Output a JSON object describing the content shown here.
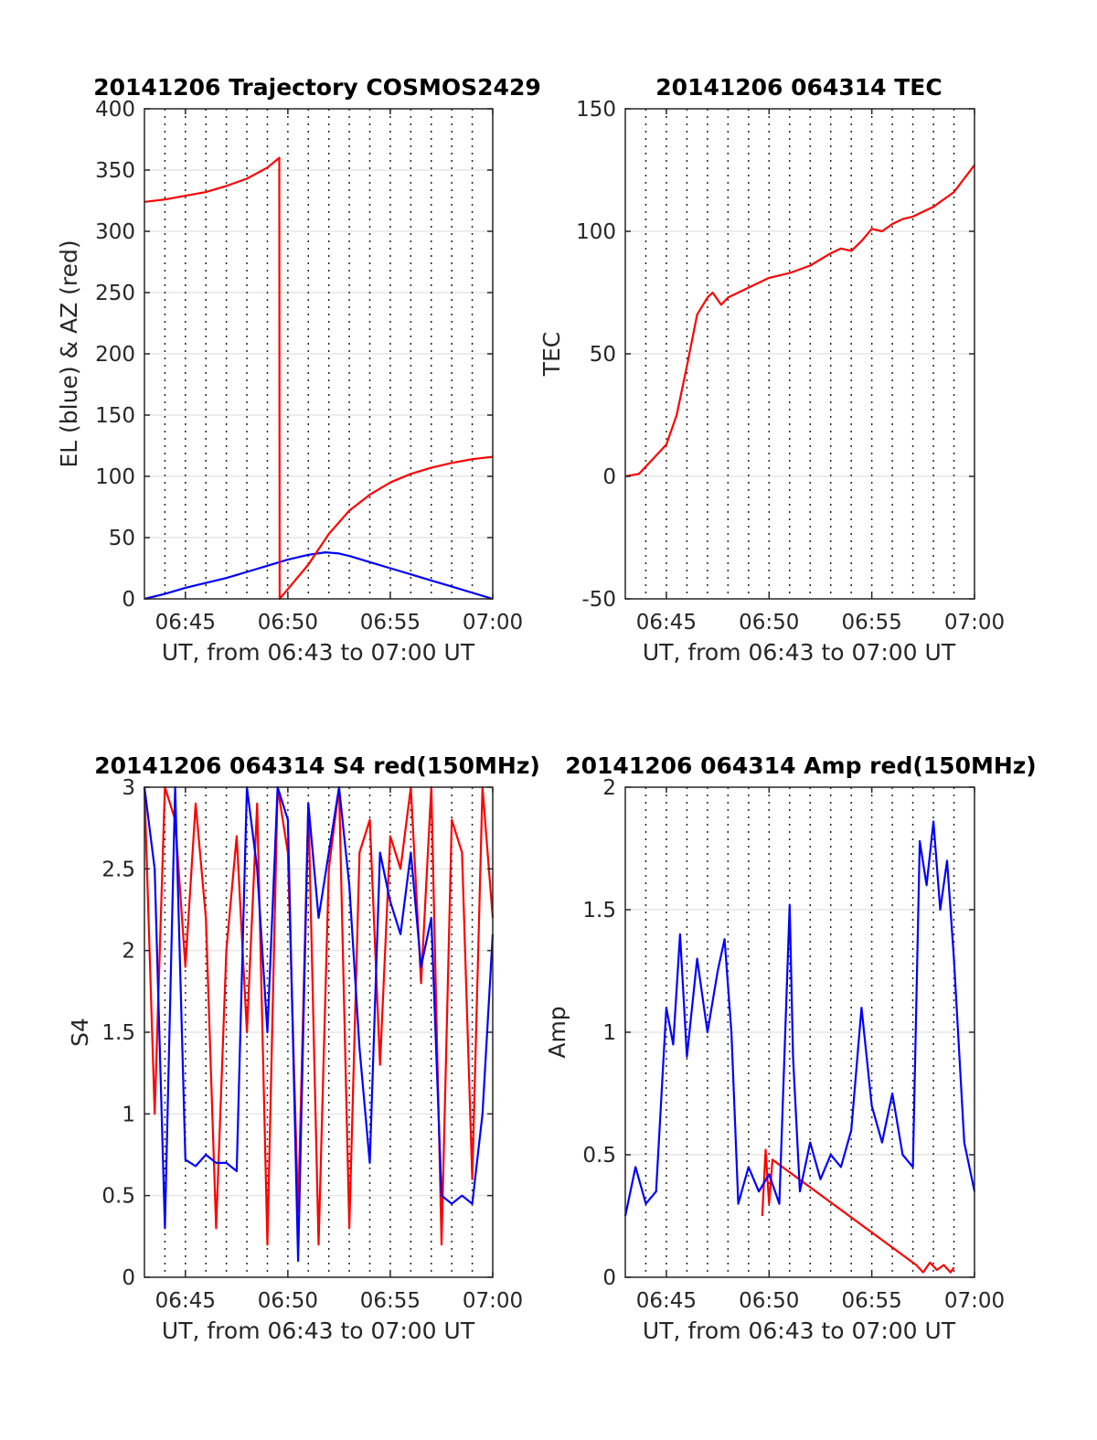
{
  "chart_data": [
    {
      "type": "line",
      "title": "20141206 Trajectory COSMOS2429",
      "xlabel": "UT, from 06:43 to 07:00 UT",
      "ylabel": "EL (blue) & AZ (red)",
      "xlim": [
        "06:43",
        "07:00"
      ],
      "ylim": [
        0,
        400
      ],
      "x_ticks": [
        "06:45",
        "06:50",
        "06:55",
        "07:00"
      ],
      "y_ticks": [
        0,
        50,
        100,
        150,
        200,
        250,
        300,
        350,
        400
      ],
      "grid": true,
      "series": [
        {
          "color": "#0000ff",
          "x": [
            "06:43:00",
            "06:44:00",
            "06:45:00",
            "06:46:00",
            "06:47:00",
            "06:48:00",
            "06:49:00",
            "06:50:00",
            "06:51:00",
            "06:51:50",
            "06:52:30",
            "06:53:00",
            "06:54:00",
            "06:55:00",
            "06:56:00",
            "06:57:00",
            "06:58:00",
            "06:59:00",
            "07:00:00"
          ],
          "values": [
            0,
            4,
            9,
            13,
            17,
            22,
            27,
            32,
            36,
            38,
            37,
            35,
            30,
            25,
            20,
            15,
            10,
            5,
            0
          ]
        },
        {
          "color": "#ff0000",
          "x": [
            "06:43:00",
            "06:44:00",
            "06:45:00",
            "06:46:00",
            "06:47:00",
            "06:48:00",
            "06:49:00",
            "06:49:35",
            "06:49:36",
            "06:50:00",
            "06:51:00",
            "06:52:00",
            "06:53:00",
            "06:54:00",
            "06:55:00",
            "06:56:00",
            "06:57:00",
            "06:58:00",
            "06:59:00",
            "07:00:00"
          ],
          "values": [
            324,
            326,
            329,
            332,
            337,
            343,
            352,
            360,
            0,
            8,
            28,
            53,
            72,
            85,
            95,
            102,
            107,
            111,
            114,
            116
          ]
        }
      ]
    },
    {
      "type": "line",
      "title": "20141206 064314 TEC",
      "xlabel": "UT, from 06:43 to 07:00 UT",
      "ylabel": "TEC",
      "xlim": [
        "06:43",
        "07:00"
      ],
      "ylim": [
        -50,
        150
      ],
      "x_ticks": [
        "06:45",
        "06:50",
        "06:55",
        "07:00"
      ],
      "y_ticks": [
        -50,
        0,
        50,
        100,
        150
      ],
      "grid": true,
      "series": [
        {
          "color": "#ff0000",
          "x": [
            "06:43:00",
            "06:43:40",
            "06:44:20",
            "06:45:00",
            "06:45:30",
            "06:46:00",
            "06:46:30",
            "06:47:00",
            "06:47:15",
            "06:47:40",
            "06:48:00",
            "06:49:00",
            "06:50:00",
            "06:51:00",
            "06:52:00",
            "06:53:00",
            "06:53:30",
            "06:54:00",
            "06:54:30",
            "06:55:00",
            "06:55:30",
            "06:56:00",
            "06:56:30",
            "06:57:00",
            "06:58:00",
            "06:59:00",
            "07:00:00"
          ],
          "values": [
            0,
            1,
            7,
            13,
            25,
            45,
            66,
            73,
            75,
            70,
            73,
            77,
            81,
            83,
            86,
            91,
            93,
            92,
            96,
            101,
            100,
            103,
            105,
            106,
            110,
            116,
            127
          ]
        }
      ]
    },
    {
      "type": "line",
      "title": "20141206 064314 S4 red(150MHz)",
      "xlabel": "UT, from 06:43 to 07:00 UT",
      "ylabel": "S4",
      "xlim": [
        "06:43",
        "07:00"
      ],
      "ylim": [
        0,
        3
      ],
      "x_ticks": [
        "06:45",
        "06:50",
        "06:55",
        "07:00"
      ],
      "y_ticks": [
        0,
        0.5,
        1,
        1.5,
        2,
        2.5,
        3
      ],
      "grid": true,
      "series": [
        {
          "color": "#ff0000",
          "x": [
            "06:43:00",
            "06:43:30",
            "06:44:00",
            "06:44:30",
            "06:45:00",
            "06:45:30",
            "06:46:00",
            "06:46:30",
            "06:47:00",
            "06:47:30",
            "06:48:00",
            "06:48:30",
            "06:49:00",
            "06:49:30",
            "06:50:00",
            "06:50:30",
            "06:51:00",
            "06:51:30",
            "06:52:00",
            "06:52:30",
            "06:53:00",
            "06:53:30",
            "06:54:00",
            "06:54:30",
            "06:55:00",
            "06:55:30",
            "06:56:00",
            "06:56:30",
            "06:57:00",
            "06:57:30",
            "06:58:00",
            "06:58:30",
            "06:59:00",
            "06:59:30",
            "07:00:00"
          ],
          "values": [
            3,
            1.0,
            3,
            2.8,
            1.9,
            2.9,
            2.2,
            0.3,
            2.0,
            2.7,
            1.5,
            2.9,
            0.2,
            3,
            2.6,
            0.4,
            2.9,
            0.2,
            2.5,
            3,
            0.3,
            2.6,
            2.8,
            1.3,
            2.7,
            2.5,
            3,
            1.8,
            3,
            0.2,
            2.8,
            2.6,
            0.6,
            3,
            2.2
          ]
        },
        {
          "color": "#0000ff",
          "x": [
            "06:43:00",
            "06:43:30",
            "06:44:00",
            "06:44:30",
            "06:45:00",
            "06:45:30",
            "06:46:00",
            "06:46:30",
            "06:47:00",
            "06:47:30",
            "06:48:00",
            "06:48:30",
            "06:49:00",
            "06:49:30",
            "06:50:00",
            "06:50:30",
            "06:51:00",
            "06:51:30",
            "06:52:00",
            "06:52:30",
            "06:53:00",
            "06:53:30",
            "06:54:00",
            "06:54:30",
            "06:55:00",
            "06:55:30",
            "06:56:00",
            "06:56:30",
            "06:57:00",
            "06:57:30",
            "06:58:00",
            "06:58:30",
            "06:59:00",
            "06:59:30",
            "07:00:00"
          ],
          "values": [
            3,
            2.5,
            0.3,
            3,
            0.72,
            0.68,
            0.75,
            0.7,
            0.7,
            0.65,
            3,
            2.5,
            1.5,
            3,
            2.8,
            0.1,
            2.9,
            2.2,
            2.6,
            3,
            2.4,
            1.4,
            0.7,
            2.6,
            2.3,
            2.1,
            2.6,
            1.9,
            2.2,
            0.5,
            0.45,
            0.5,
            0.45,
            1.0,
            2.1
          ]
        }
      ]
    },
    {
      "type": "line",
      "title": "20141206 064314 Amp red(150MHz)",
      "xlabel": "UT, from 06:43 to 07:00 UT",
      "ylabel": "Amp",
      "xlim": [
        "06:43",
        "07:00"
      ],
      "ylim": [
        0,
        2
      ],
      "x_ticks": [
        "06:45",
        "06:50",
        "06:55",
        "07:00"
      ],
      "y_ticks": [
        0,
        0.5,
        1,
        1.5,
        2
      ],
      "grid": true,
      "series": [
        {
          "color": "#ff0000",
          "x": [
            "06:49:40",
            "06:49:50",
            "06:50:00",
            "06:50:10",
            "06:57:10",
            "06:57:30",
            "06:57:50",
            "06:58:10",
            "06:58:30",
            "06:58:50",
            "06:59:00"
          ],
          "values": [
            0.25,
            0.52,
            0.3,
            0.48,
            0.05,
            0.02,
            0.06,
            0.03,
            0.05,
            0.02,
            0.04
          ]
        },
        {
          "color": "#0000ff",
          "x": [
            "06:43:00",
            "06:43:30",
            "06:44:00",
            "06:44:30",
            "06:45:00",
            "06:45:20",
            "06:45:40",
            "06:46:00",
            "06:46:30",
            "06:47:00",
            "06:47:30",
            "06:47:50",
            "06:48:10",
            "06:48:30",
            "06:49:00",
            "06:49:30",
            "06:50:00",
            "06:50:30",
            "06:51:00",
            "06:51:10",
            "06:51:30",
            "06:52:00",
            "06:52:30",
            "06:53:00",
            "06:53:30",
            "06:54:00",
            "06:54:30",
            "06:55:00",
            "06:55:30",
            "06:56:00",
            "06:56:30",
            "06:57:00",
            "06:57:20",
            "06:57:40",
            "06:58:00",
            "06:58:20",
            "06:58:40",
            "06:59:00",
            "06:59:30",
            "07:00:00"
          ],
          "values": [
            0.25,
            0.45,
            0.3,
            0.35,
            1.1,
            0.95,
            1.4,
            0.9,
            1.3,
            1.0,
            1.25,
            1.38,
            1.0,
            0.3,
            0.45,
            0.35,
            0.42,
            0.3,
            1.52,
            0.9,
            0.35,
            0.55,
            0.4,
            0.5,
            0.45,
            0.6,
            1.1,
            0.7,
            0.55,
            0.75,
            0.5,
            0.45,
            1.78,
            1.6,
            1.86,
            1.5,
            1.7,
            1.3,
            0.55,
            0.35
          ]
        }
      ]
    }
  ]
}
